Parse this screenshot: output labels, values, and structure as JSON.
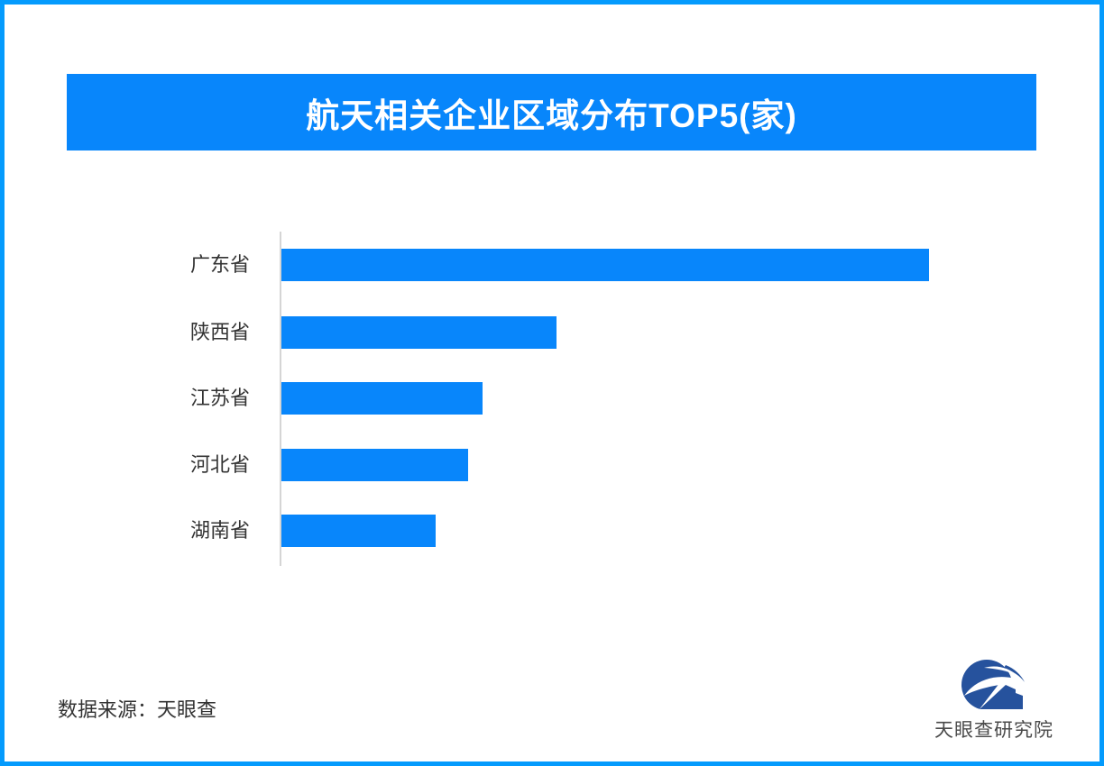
{
  "page": {
    "border_color": "#049bfd",
    "background_color": "#ffffff"
  },
  "header": {
    "title": "航天相关企业区域分布TOP5(家)",
    "banner_color": "#0886fb",
    "title_color": "#ffffff"
  },
  "chart_data": {
    "type": "bar",
    "orientation": "horizontal",
    "title": "航天相关企业区域分布TOP5(家)",
    "categories": [
      "广东省",
      "陕西省",
      "江苏省",
      "河北省",
      "湖南省"
    ],
    "values_pct_of_max": [
      100,
      42.5,
      31.1,
      28.8,
      23.8
    ],
    "value_labels_shown": false,
    "value_axis_ticks_shown": false,
    "grid": false,
    "legend": null,
    "bar_color": "#0886fb",
    "axis_line_color": "#d5d5d5",
    "category_label_color": "#333333"
  },
  "footer": {
    "source_text": "数据来源：天眼查",
    "logo_text": "天眼查研究院",
    "logo_primary_color": "#26529d"
  }
}
